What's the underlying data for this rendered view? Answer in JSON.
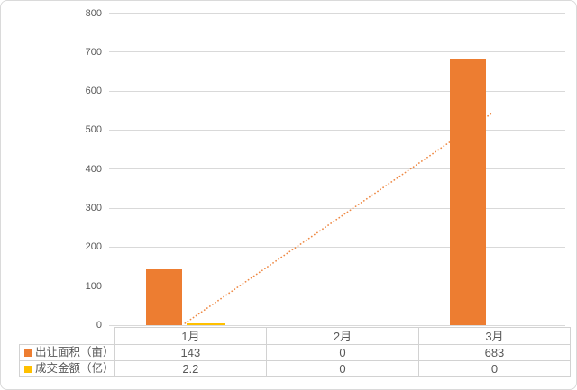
{
  "frame": {
    "background": "#ffffff",
    "border_color": "#dadada"
  },
  "chart_data": {
    "type": "bar",
    "title": "",
    "xlabel": "",
    "ylabel": "",
    "categories": [
      "1月",
      "2月",
      "3月"
    ],
    "series": [
      {
        "name": "出让面积（亩）",
        "color": "#ED7D31",
        "values": [
          143,
          0,
          683
        ]
      },
      {
        "name": "成交金额（亿）",
        "color": "#FFC000",
        "values": [
          2.2,
          0,
          0
        ]
      }
    ],
    "ylim": [
      0,
      800
    ],
    "yticks": [
      0,
      100,
      200,
      300,
      400,
      500,
      600,
      700,
      800
    ],
    "grid": true,
    "gridline_color": "#d9d9d9",
    "axis_text_color": "#595959",
    "table_text_color": "#595959",
    "table_border_color": "#d2d2d2",
    "legend_position": "data-table-left",
    "data_table": true,
    "trendline": {
      "series": "出让面积（亩）",
      "style": "dotted",
      "color": "#ED7D31",
      "from": {
        "category": "1月",
        "value": 5
      },
      "to": {
        "category": "3月",
        "value": 545
      }
    }
  }
}
